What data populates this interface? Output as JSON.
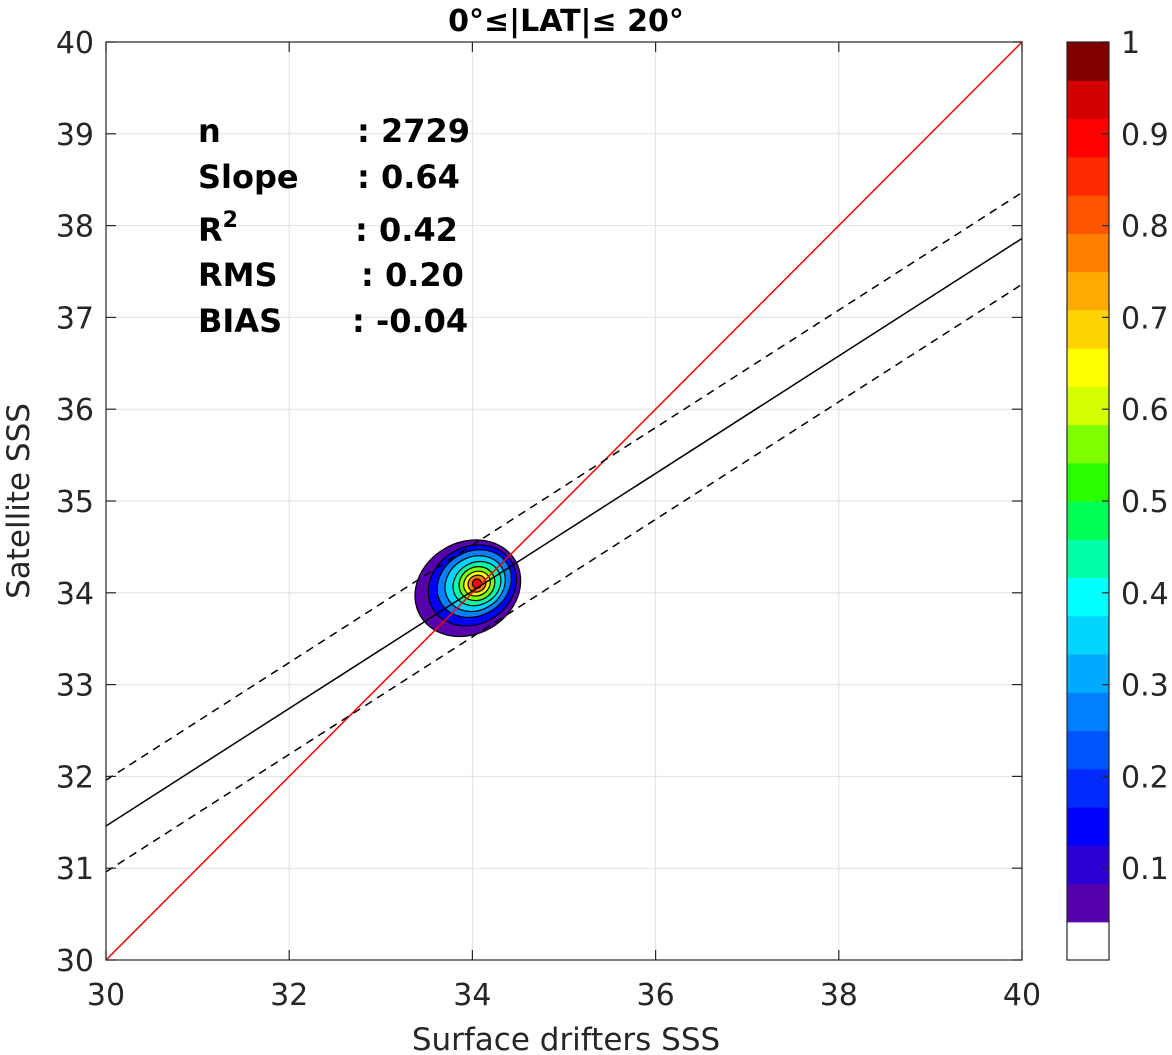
{
  "chart_data": {
    "type": "scatter",
    "subtype": "density-contour",
    "title": "0°≤|LAT|≤ 20°",
    "xlabel": "Surface drifters SSS",
    "ylabel": "Satellite SSS",
    "xlim": [
      30,
      40
    ],
    "ylim": [
      30,
      40
    ],
    "xticks": [
      30,
      32,
      34,
      36,
      38,
      40
    ],
    "yticks": [
      30,
      31,
      32,
      33,
      34,
      35,
      36,
      37,
      38,
      39,
      40
    ],
    "grid": true,
    "stats": [
      {
        "label": "n",
        "value": ": 2729"
      },
      {
        "label": "Slope",
        "value": ": 0.64"
      },
      {
        "label": "R",
        "sup": "2",
        "value": ": 0.42"
      },
      {
        "label": "RMS",
        "value": ": 0.20"
      },
      {
        "label": "BIAS",
        "value": ": -0.04"
      }
    ],
    "lines": [
      {
        "kind": "one-to-one",
        "color": "#ff0000",
        "dash": false,
        "points": [
          [
            30,
            30
          ],
          [
            40,
            40
          ]
        ]
      },
      {
        "kind": "regression",
        "color": "#000000",
        "dash": false,
        "points": [
          [
            30,
            31.46
          ],
          [
            40,
            37.86
          ]
        ]
      },
      {
        "kind": "regression-plus",
        "color": "#000000",
        "dash": true,
        "points": [
          [
            30,
            31.96
          ],
          [
            40,
            38.36
          ]
        ]
      },
      {
        "kind": "regression-minus",
        "color": "#000000",
        "dash": true,
        "points": [
          [
            30,
            30.96
          ],
          [
            40,
            37.36
          ]
        ]
      }
    ],
    "density": {
      "center": [
        34.05,
        34.1
      ],
      "levels": [
        {
          "level": 0.05,
          "rx": 0.6,
          "ry": 0.5,
          "dx": -0.1,
          "dy": -0.05
        },
        {
          "level": 0.15,
          "rx": 0.5,
          "ry": 0.42,
          "dx": -0.05,
          "dy": -0.02
        },
        {
          "level": 0.25,
          "rx": 0.42,
          "ry": 0.35,
          "dx": -0.03,
          "dy": 0.0
        },
        {
          "level": 0.35,
          "rx": 0.34,
          "ry": 0.29,
          "dx": -0.02,
          "dy": 0.0
        },
        {
          "level": 0.45,
          "rx": 0.27,
          "ry": 0.23,
          "dx": 0.0,
          "dy": 0.0
        },
        {
          "level": 0.55,
          "rx": 0.2,
          "ry": 0.18,
          "dx": 0.0,
          "dy": 0.0
        },
        {
          "level": 0.65,
          "rx": 0.15,
          "ry": 0.13,
          "dx": 0.0,
          "dy": 0.0
        },
        {
          "level": 0.75,
          "rx": 0.1,
          "ry": 0.09,
          "dx": 0.0,
          "dy": 0.0
        },
        {
          "level": 0.9,
          "rx": 0.05,
          "ry": 0.05,
          "dx": 0.0,
          "dy": 0.0
        }
      ]
    },
    "colorbar": {
      "ticks": [
        "0.1",
        "0.2",
        "0.3",
        "0.4",
        "0.5",
        "0.6",
        "0.7",
        "0.8",
        "0.9",
        "1"
      ],
      "tick_values": [
        0.1,
        0.2,
        0.3,
        0.4,
        0.5,
        0.6,
        0.7,
        0.8,
        0.9,
        1.0
      ],
      "colors": [
        "#ffffff",
        "#5500aa",
        "#2a00d5",
        "#0000ff",
        "#002aff",
        "#0055ff",
        "#0080ff",
        "#00aaff",
        "#00d4ff",
        "#00ffff",
        "#00ffaa",
        "#00ff55",
        "#2aff00",
        "#80ff00",
        "#d4ff00",
        "#ffff00",
        "#ffd400",
        "#ffaa00",
        "#ff8000",
        "#ff5500",
        "#ff2a00",
        "#ff0000",
        "#d40000",
        "#800000"
      ]
    }
  }
}
